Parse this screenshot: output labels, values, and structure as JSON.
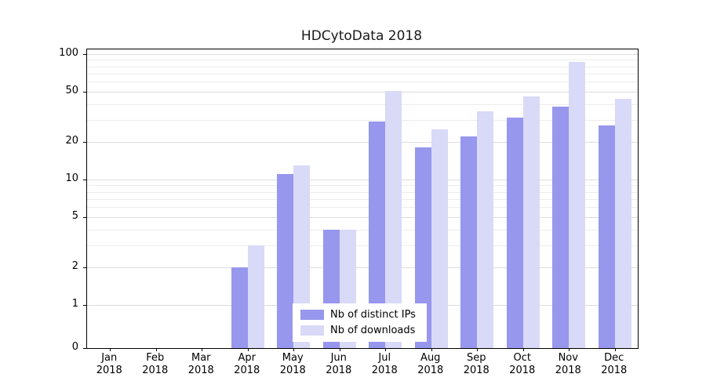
{
  "title": "HDCytoData 2018",
  "legend": {
    "items": [
      {
        "label": "Nb of distinct IPs",
        "color": "#9797ee"
      },
      {
        "label": "Nb of downloads",
        "color": "#d9d9f8"
      }
    ]
  },
  "chart_data": {
    "type": "bar",
    "title": "HDCytoData 2018",
    "categories": [
      "Jan",
      "Feb",
      "Mar",
      "Apr",
      "May",
      "Jun",
      "Jul",
      "Aug",
      "Sep",
      "Oct",
      "Nov",
      "Dec"
    ],
    "year": "2018",
    "series": [
      {
        "name": "Nb of distinct IPs",
        "color": "#9797ee",
        "values": [
          0,
          0,
          0,
          2,
          11,
          4,
          29,
          18,
          22,
          31,
          38,
          27
        ]
      },
      {
        "name": "Nb of downloads",
        "color": "#d9d9f8",
        "values": [
          0,
          0,
          0,
          3,
          13,
          4,
          51,
          25,
          35,
          46,
          87,
          44
        ]
      }
    ],
    "yscale": "log",
    "yticks": [
      0,
      1,
      2,
      5,
      10,
      20,
      50,
      100
    ],
    "ylim": [
      0,
      110
    ],
    "grid": "horizontal-minor",
    "legend_position": "bottom-center"
  }
}
